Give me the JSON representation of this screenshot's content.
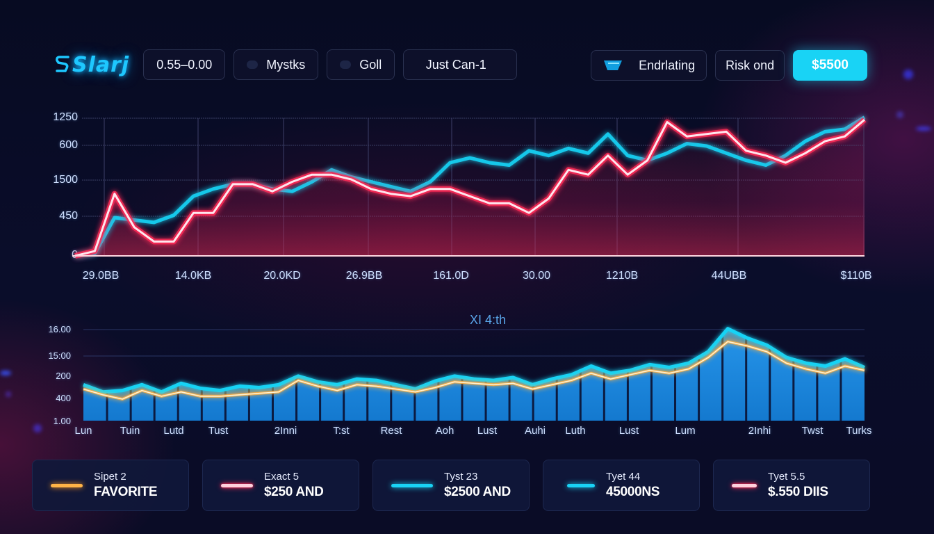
{
  "header": {
    "logo": "Slarj",
    "chips": [
      {
        "label": "0.55–0.00",
        "has_dot": false
      },
      {
        "label": "Mystks",
        "has_dot": true
      },
      {
        "label": "Goll",
        "has_dot": true
      },
      {
        "label": "Just Can-1",
        "has_dot": false
      }
    ],
    "right": {
      "filter_label": "Endrlating",
      "risk_label": "Risk ond",
      "amount_label": "$5500"
    }
  },
  "colors": {
    "background": "#090c27",
    "cyan": "#19d3f5",
    "red": "#ff2b56",
    "orange": "#ffb347",
    "bar_blue": "#1a8fe0"
  },
  "chart_data": [
    {
      "type": "line",
      "title": "",
      "xlabel": "",
      "ylabel": "",
      "y_tick_labels": [
        "1250",
        "600",
        "1500",
        "450",
        "0"
      ],
      "x_tick_labels": [
        "29.0BB",
        "14.0KB",
        "20.0KD",
        "26.9BB",
        "161.0D",
        "30.00",
        "1210B",
        "44UBB",
        "$110B"
      ],
      "grid": true,
      "legend": "none",
      "x": [
        0,
        1,
        2,
        3,
        4,
        5,
        6,
        7,
        8,
        9,
        10,
        11,
        12,
        13,
        14,
        15,
        16,
        17,
        18,
        19,
        20,
        21,
        22,
        23,
        24,
        25,
        26,
        27,
        28,
        29,
        30,
        31,
        32,
        33,
        34,
        35,
        36,
        37,
        38,
        39,
        40
      ],
      "series": [
        {
          "name": "Red",
          "color": "#ff2b56",
          "values": [
            0,
            20,
            260,
            120,
            60,
            60,
            180,
            180,
            300,
            300,
            270,
            310,
            340,
            340,
            320,
            280,
            260,
            250,
            280,
            280,
            250,
            220,
            220,
            180,
            240,
            360,
            340,
            420,
            340,
            400,
            560,
            500,
            510,
            520,
            440,
            420,
            390,
            430,
            480,
            500,
            570
          ]
        },
        {
          "name": "Cyan",
          "color": "#19d3f5",
          "values": [
            0,
            10,
            160,
            150,
            140,
            170,
            250,
            280,
            300,
            300,
            280,
            270,
            310,
            360,
            330,
            310,
            290,
            270,
            310,
            390,
            410,
            390,
            380,
            440,
            420,
            450,
            430,
            510,
            420,
            400,
            430,
            470,
            460,
            430,
            400,
            380,
            420,
            480,
            520,
            530,
            580
          ]
        }
      ],
      "ylim": [
        0,
        620
      ]
    },
    {
      "type": "area",
      "title": "XI 4:th",
      "xlabel": "",
      "ylabel": "",
      "y_tick_labels": [
        "16.00",
        "15:00",
        "200",
        "400",
        "1.00"
      ],
      "x_tick_labels": [
        "Lun",
        "Tuin",
        "Lutd",
        "Tust",
        "2Inni",
        "T:st",
        "Rest",
        "Aoh",
        "Lust",
        "Auhi",
        "Luth",
        "Lust",
        "Lum",
        "2Inhi",
        "Twst",
        "Turks"
      ],
      "grid": true,
      "legend": "none",
      "bars": [
        52,
        42,
        48,
        42,
        48,
        45,
        44,
        40,
        60,
        48,
        46,
        52,
        50,
        40,
        34,
        46,
        50,
        48,
        42,
        48,
        62,
        52,
        58,
        62,
        68,
        58,
        82,
        92,
        86,
        70,
        54,
        52,
        66
      ],
      "series": [
        {
          "name": "Cyan",
          "color": "#19d3f5",
          "values": [
            50,
            40,
            42,
            50,
            40,
            52,
            45,
            42,
            48,
            46,
            50,
            62,
            54,
            50,
            58,
            56,
            50,
            44,
            55,
            62,
            58,
            56,
            60,
            50,
            58,
            64,
            76,
            66,
            70,
            78,
            74,
            80,
            96,
            128,
            115,
            105,
            88,
            80,
            76,
            86,
            74
          ]
        },
        {
          "name": "Orange",
          "color": "#ffb347",
          "values": [
            44,
            36,
            30,
            42,
            34,
            40,
            34,
            34,
            36,
            38,
            40,
            56,
            48,
            42,
            50,
            48,
            44,
            40,
            46,
            54,
            52,
            50,
            52,
            44,
            50,
            56,
            66,
            58,
            64,
            70,
            66,
            72,
            88,
            110,
            104,
            96,
            80,
            72,
            66,
            76,
            70
          ]
        }
      ],
      "ylim": [
        0,
        150
      ]
    }
  ],
  "legend_cards": [
    {
      "sub": "Sipet 2",
      "value": "FAVORITE",
      "color": "#ffb347"
    },
    {
      "sub": "Exact 5",
      "value": "$250 AND",
      "color": "#ff2b56"
    },
    {
      "sub": "Tyst 23",
      "value": "$2500 AND",
      "color": "#19d3f5"
    },
    {
      "sub": "Tyet 44",
      "value": "45000NS",
      "color": "#19d3f5"
    },
    {
      "sub": "Tyet 5.5",
      "value": "$.550 DIIS",
      "color": "#ff2b56"
    }
  ]
}
